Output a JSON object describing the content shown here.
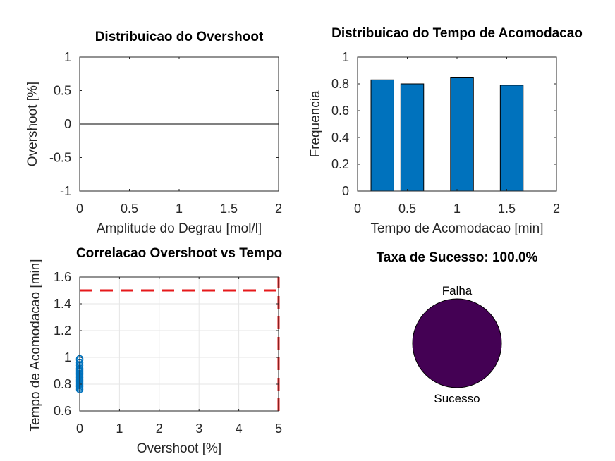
{
  "colors": {
    "bar": "#0072BD",
    "scatter": "#0072BD",
    "reference": "#E6191B",
    "pie": "#440154",
    "grid": "#e6e6e6",
    "axis": "#262626"
  },
  "chart_data": [
    {
      "id": "overshoot",
      "type": "line",
      "title": "Distribuicao do Overshoot",
      "xlabel": "Amplitude do Degrau [mol/l]",
      "ylabel": "Overshoot [%]",
      "xlim": [
        0,
        2
      ],
      "ylim": [
        -1,
        1
      ],
      "xticks": [
        "0",
        "0.5",
        "1",
        "1.5",
        "2"
      ],
      "yticks": [
        "-1",
        "-0.5",
        "0",
        "0.5",
        "1"
      ],
      "grid": false,
      "series": [
        {
          "x": [
            0,
            2
          ],
          "y": [
            0,
            0
          ]
        }
      ]
    },
    {
      "id": "settling",
      "type": "bar",
      "title": "Distribuicao do Tempo de Acomodacao",
      "xlabel": "Tempo de Acomodacao [min]",
      "ylabel": "Frequencia",
      "xlim": [
        0,
        2
      ],
      "ylim": [
        0,
        1
      ],
      "xticks": [
        "0",
        "0.5",
        "1",
        "1.5",
        "2"
      ],
      "yticks": [
        "0",
        "0.2",
        "0.4",
        "0.6",
        "0.8",
        "1"
      ],
      "grid": false,
      "bar_width": 0.23,
      "x": [
        0.25,
        0.55,
        1.05,
        1.55
      ],
      "values": [
        0.83,
        0.8,
        0.85,
        0.79
      ]
    },
    {
      "id": "correlation",
      "type": "scatter",
      "title": "Correlacao Overshoot vs Tempo",
      "xlabel": "Overshoot [%]",
      "ylabel": "Tempo de Acomodacao [min]",
      "xlim": [
        0,
        5
      ],
      "ylim": [
        0.6,
        1.6
      ],
      "xticks": [
        "0",
        "1",
        "2",
        "3",
        "4",
        "5"
      ],
      "yticks": [
        "0.6",
        "0.8",
        "1",
        "1.2",
        "1.4",
        "1.6"
      ],
      "grid": true,
      "points": {
        "x": [
          0,
          0,
          0,
          0,
          0,
          0,
          0,
          0,
          0,
          0,
          0,
          0,
          0,
          0,
          0,
          0,
          0,
          0,
          0,
          0,
          0
        ],
        "y": [
          0.76,
          0.78,
          0.8,
          0.82,
          0.84,
          0.86,
          0.88,
          0.9,
          0.92,
          0.94,
          0.96,
          0.98,
          0.77,
          0.79,
          0.81,
          0.83,
          0.85,
          0.87,
          0.89,
          0.91,
          0.99
        ]
      },
      "reference_lines": [
        {
          "orientation": "horizontal",
          "y": 1.5,
          "x": [
            0,
            5
          ]
        },
        {
          "orientation": "vertical",
          "x": 5,
          "y": [
            0.6,
            1.6
          ]
        }
      ]
    },
    {
      "id": "success",
      "type": "pie",
      "title": "Taxa de Sucesso: 100.0%",
      "labels": [
        "Falha",
        "Sucesso"
      ],
      "values": [
        0,
        100
      ]
    }
  ]
}
